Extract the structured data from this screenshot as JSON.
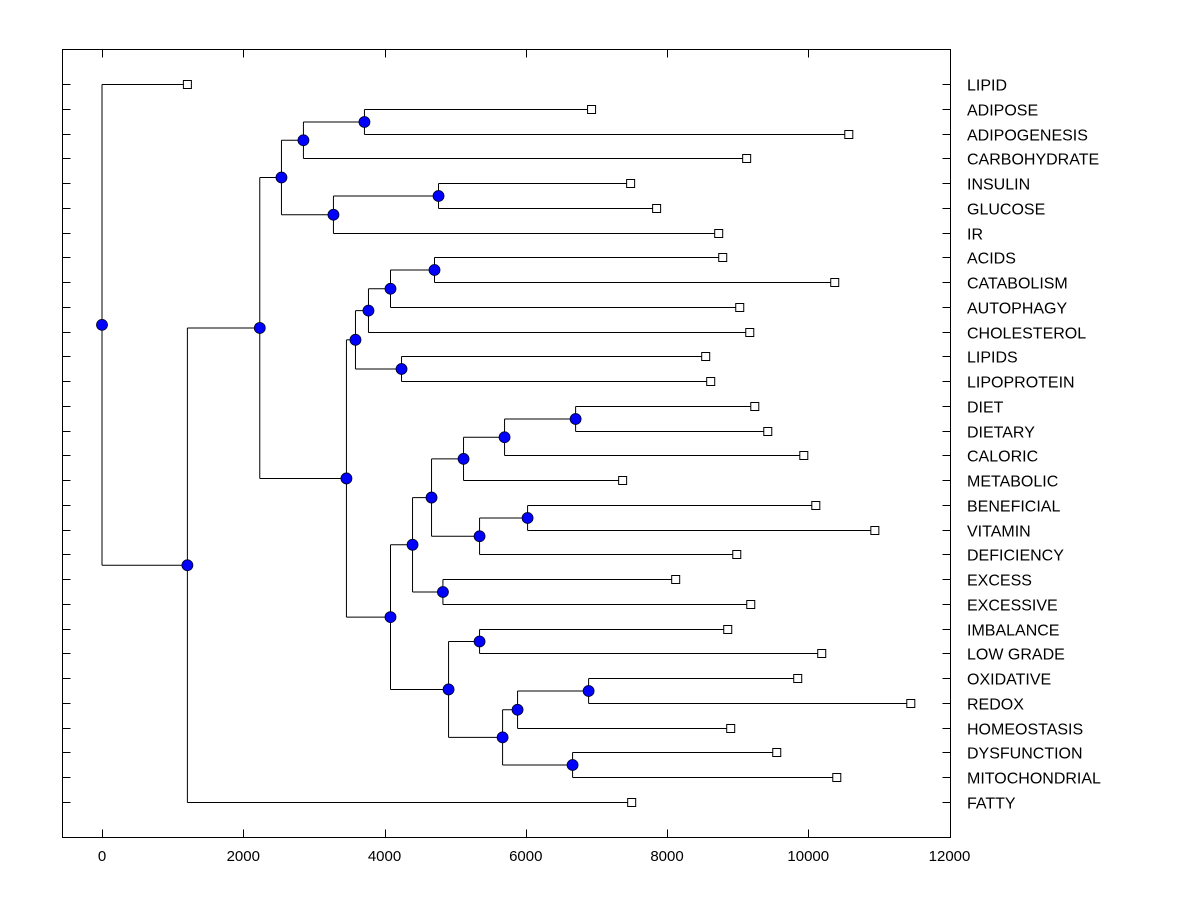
{
  "chart_data": {
    "type": "dendrogram",
    "title": "",
    "xlabel": "",
    "ylabel": "",
    "xlim": [
      -566,
      12020
    ],
    "xticks": [
      0,
      2000,
      4000,
      6000,
      8000,
      10000,
      12000
    ],
    "xtick_labels": [
      "0",
      "2000",
      "4000",
      "6000",
      "8000",
      "10000",
      "12000"
    ],
    "grid": false,
    "leaf_label_position": "right",
    "colors": {
      "node_fill": "#0000ff",
      "line": "#000000",
      "leaf_marker": "#ffffff"
    },
    "leaves": [
      {
        "label": "LIPID",
        "value": 1209
      },
      {
        "label": "ADIPOSE",
        "value": 6932
      },
      {
        "label": "ADIPOGENESIS",
        "value": 10574
      },
      {
        "label": "CARBOHYDRATE",
        "value": 9128
      },
      {
        "label": "INSULIN",
        "value": 7485
      },
      {
        "label": "GLUCOSE",
        "value": 7853
      },
      {
        "label": "IR",
        "value": 8732
      },
      {
        "label": "ACIDS",
        "value": 8789
      },
      {
        "label": "CATABOLISM",
        "value": 10375
      },
      {
        "label": "AUTOPHAGY",
        "value": 9030
      },
      {
        "label": "CHOLESTEROL",
        "value": 9172
      },
      {
        "label": "LIPIDS",
        "value": 8548
      },
      {
        "label": "LIPOPROTEIN",
        "value": 8619
      },
      {
        "label": "DIET",
        "value": 9243
      },
      {
        "label": "DIETARY",
        "value": 9427
      },
      {
        "label": "CALORIC",
        "value": 9937
      },
      {
        "label": "METABOLIC",
        "value": 7372
      },
      {
        "label": "BENEFICIAL",
        "value": 10107
      },
      {
        "label": "VITAMIN",
        "value": 10943
      },
      {
        "label": "DEFICIENCY",
        "value": 8988
      },
      {
        "label": "EXCESS",
        "value": 8123
      },
      {
        "label": "EXCESSIVE",
        "value": 9186
      },
      {
        "label": "IMBALANCE",
        "value": 8860
      },
      {
        "label": "LOW GRADE",
        "value": 10191
      },
      {
        "label": "OXIDATIVE",
        "value": 9851
      },
      {
        "label": "REDOX",
        "value": 11452
      },
      {
        "label": "HOMEOSTASIS",
        "value": 8902
      },
      {
        "label": "DYSFUNCTION",
        "value": 9554
      },
      {
        "label": "MITOCHONDRIAL",
        "value": 10404
      },
      {
        "label": "FATTY",
        "value": 7500
      }
    ],
    "tree": {
      "value": 0,
      "children": [
        "LIPID",
        {
          "value": 1209,
          "children": [
            {
              "value": 2234,
              "children": [
                {
                  "value": 2541,
                  "children": [
                    {
                      "value": 2852,
                      "children": [
                        {
                          "value": 3716,
                          "children": [
                            "ADIPOSE",
                            "ADIPOGENESIS"
                          ]
                        },
                        "CARBOHYDRATE"
                      ]
                    },
                    {
                      "value": 3277,
                      "children": [
                        {
                          "value": 4765,
                          "children": [
                            "INSULIN",
                            "GLUCOSE"
                          ]
                        },
                        "IR"
                      ]
                    }
                  ]
                },
                {
                  "value": 3461,
                  "children": [
                    {
                      "value": 3589,
                      "children": [
                        {
                          "value": 3773,
                          "children": [
                            {
                              "value": 4085,
                              "children": [
                                {
                                  "value": 4708,
                                  "children": [
                                    "ACIDS",
                                    "CATABOLISM"
                                  ]
                                },
                                "AUTOPHAGY"
                              ]
                            },
                            "CHOLESTEROL"
                          ]
                        },
                        {
                          "value": 4241,
                          "children": [
                            "LIPIDS",
                            "LIPOPROTEIN"
                          ]
                        }
                      ]
                    },
                    {
                      "value": 4085,
                      "children": [
                        {
                          "value": 4397,
                          "children": [
                            {
                              "value": 4666,
                              "children": [
                                {
                                  "value": 5119,
                                  "children": [
                                    {
                                      "value": 5700,
                                      "children": [
                                        {
                                          "value": 6706,
                                          "children": [
                                            "DIET",
                                            "DIETARY"
                                          ]
                                        },
                                        "CALORIC"
                                      ]
                                    },
                                    "METABOLIC"
                                  ]
                                },
                                {
                                  "value": 5346,
                                  "children": [
                                    {
                                      "value": 6026,
                                      "children": [
                                        "BENEFICIAL",
                                        "VITAMIN"
                                      ]
                                    },
                                    "DEFICIENCY"
                                  ]
                                }
                              ]
                            },
                            {
                              "value": 4827,
                              "children": [
                                "EXCESS",
                                "EXCESSIVE"
                              ]
                            }
                          ]
                        },
                        {
                          "value": 4907,
                          "children": [
                            {
                              "value": 5346,
                              "children": [
                                "IMBALANCE",
                                "LOW GRADE"
                              ]
                            },
                            {
                              "value": 5672,
                              "children": [
                                {
                                  "value": 5884,
                                  "children": [
                                    {
                                      "value": 6890,
                                      "children": [
                                        "OXIDATIVE",
                                        "REDOX"
                                      ]
                                    },
                                    "HOMEOSTASIS"
                                  ]
                                },
                                {
                                  "value": 6663,
                                  "children": [
                                    "DYSFUNCTION",
                                    "MITOCHONDRIAL"
                                  ]
                                }
                              ]
                            }
                          ]
                        }
                      ]
                    }
                  ]
                }
              ]
            },
            "FATTY"
          ]
        }
      ]
    }
  }
}
